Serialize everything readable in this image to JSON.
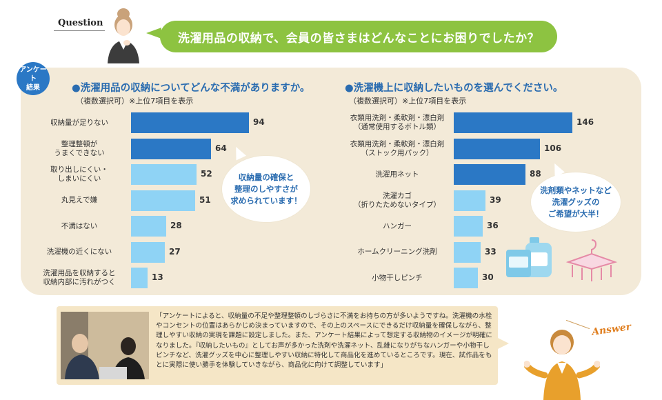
{
  "question": {
    "label": "Question",
    "text": "洗濯用品の収納で、会員の皆さまはどんなことにお困りでしたか？"
  },
  "badge": {
    "line1": "アンケート",
    "line2": "結果"
  },
  "colors": {
    "dark_bar": "#2b78c5",
    "light_bar": "#8fd3f5",
    "green": "#8dc341",
    "panel": "#f3ead8",
    "accent_blue": "#2a6cb0"
  },
  "chart_data": [
    {
      "type": "bar",
      "orientation": "horizontal",
      "title": "●洗濯用品の収納についてどんな不満がありますか。",
      "subtitle": "（複数選択可）※上位7項目を表示",
      "categories": [
        "収納量が足りない",
        "整理整頓が\nうまくできない",
        "取り出しにくい・\nしまいにくい",
        "丸見えで嫌",
        "不満はない",
        "洗濯機の近くにない",
        "洗濯用品を収納すると\n収納内部に汚れがつく"
      ],
      "values": [
        94,
        64,
        52,
        51,
        28,
        27,
        13
      ],
      "highlighted": [
        true,
        true,
        false,
        false,
        false,
        false,
        false
      ],
      "callout": [
        "収納量の確保と",
        "整理のしやすさが",
        "求められています！"
      ]
    },
    {
      "type": "bar",
      "orientation": "horizontal",
      "title": "●洗濯機上に収納したいものを選んでください。",
      "subtitle": "（複数選択可）※上位7項目を表示",
      "categories": [
        "衣類用洗剤・柔軟剤・漂白剤\n（通常使用するボトル類）",
        "衣類用洗剤・柔軟剤・漂白剤\n（ストック用パック）",
        "洗濯用ネット",
        "洗濯カゴ\n（折りたためないタイプ）",
        "ハンガー",
        "ホームクリーニング洗剤",
        "小物干しピンチ"
      ],
      "values": [
        146,
        106,
        88,
        39,
        36,
        33,
        30
      ],
      "highlighted": [
        true,
        true,
        true,
        false,
        false,
        false,
        false
      ],
      "callout": [
        "洗剤類やネットなど",
        "洗濯グッズの",
        "ご希望が大半！"
      ]
    }
  ],
  "answer": {
    "label": "Answer",
    "text": "「アンケートによると、収納量の不足や整理整頓のしづらさに不満をお持ちの方が多いようですね。洗濯機の水栓やコンセントの位置はあらかじめ決まっていますので、その上のスペースにできるだけ収納量を確保しながら、整理しやすい収納の実現を課題に設定しました。また、アンケート結果によって想定する収納物のイメージが明確になりました。『収納したいもの』としてお声が多かった洗剤や洗濯ネット、乱雑になりがちなハンガーや小物干しピンチなど、洗濯グッズを中心に整理しやすい収納に特化して商品化を進めているところです。現在、試作品をもとに実際に使い勝手を体験していきながら、商品化に向けて調整しています」"
  },
  "illustrations": {
    "question_person": "woman-thinking-icon",
    "answer_person": "woman-presenting-icon",
    "detergent": "detergent-bottles-icon",
    "hanger": "clothes-pin-hanger-icon",
    "photo": "meeting-photo"
  }
}
